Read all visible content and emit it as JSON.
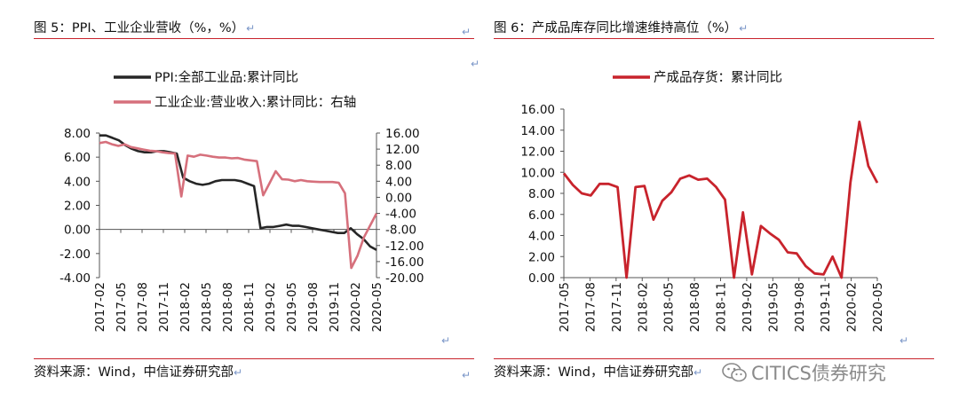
{
  "left_figure": {
    "title": "图 5：PPI、工业企业营收（%，%）",
    "source": "资料来源：Wind，中信证券研究部"
  },
  "right_figure": {
    "title": "图 6：产成品库存同比增速维持高位（%）",
    "source": "资料来源：Wind，中信证券研究部"
  },
  "watermark": "CITICS债券研究",
  "icons": {
    "return_mark": "return-arrow-icon",
    "watermark_logo": "wechat-icon"
  },
  "colors": {
    "rule": "#c8232c",
    "ppi": "#262626",
    "revenue": "#d6707c",
    "inventory": "#c8232c"
  },
  "chart_data": [
    {
      "type": "line",
      "legend_position": "top-left",
      "grid": false,
      "left_axis": {
        "ylim": [
          -4,
          8
        ],
        "ticks": [
          "8.00",
          "6.00",
          "4.00",
          "2.00",
          "0.00",
          "-2.00",
          "-4.00"
        ]
      },
      "right_axis": {
        "ylim": [
          -20,
          16
        ],
        "ticks": [
          "16.00",
          "12.00",
          "8.00",
          "4.00",
          "0.00",
          "-4.00",
          "-8.00",
          "-12.00",
          "-16.00",
          "-20.00"
        ]
      },
      "x_tick_labels": [
        "2017-02",
        "2017-05",
        "2017-08",
        "2017-11",
        "2018-02",
        "2018-05",
        "2018-08",
        "2018-11",
        "2019-02",
        "2019-05",
        "2019-08",
        "2019-11",
        "2020-02",
        "2020-05"
      ],
      "series": [
        {
          "name": "PPI:全部工业品:累计同比",
          "axis": "left",
          "values": [
            7.8,
            7.8,
            7.6,
            7.4,
            7.0,
            6.7,
            6.5,
            6.4,
            6.4,
            6.5,
            6.5,
            6.4,
            6.3,
            4.3,
            4.0,
            3.8,
            3.7,
            3.8,
            4.0,
            4.1,
            4.1,
            4.1,
            4.0,
            3.8,
            3.6,
            0.1,
            0.2,
            0.2,
            0.3,
            0.4,
            0.3,
            0.3,
            0.2,
            0.1,
            0.0,
            -0.1,
            -0.2,
            -0.3,
            -0.3,
            0.1,
            -0.4,
            -0.8,
            -1.4,
            -1.7
          ]
        },
        {
          "name": "工业企业:营业收入:累计同比：右轴",
          "axis": "right",
          "values": [
            13.5,
            13.8,
            13.2,
            12.8,
            13.2,
            12.5,
            12.2,
            11.9,
            11.6,
            11.5,
            11.2,
            11.0,
            10.9,
            0.2,
            10.4,
            10.1,
            10.6,
            10.4,
            10.1,
            9.9,
            9.9,
            9.7,
            9.8,
            9.4,
            9.2,
            9.0,
            0.5,
            3.5,
            6.5,
            4.5,
            4.4,
            4.0,
            4.3,
            4.0,
            3.9,
            3.8,
            3.8,
            3.8,
            3.6,
            1.0,
            -17.6,
            -14.5,
            -10.0,
            -7.0,
            -4.0
          ]
        }
      ]
    },
    {
      "type": "line",
      "legend_position": "top",
      "grid": false,
      "ylim": [
        0,
        16
      ],
      "y_tick_labels": [
        "16.00",
        "14.00",
        "12.00",
        "10.00",
        "8.00",
        "6.00",
        "4.00",
        "2.00",
        "0.00"
      ],
      "x_tick_labels": [
        "2017-05",
        "2017-08",
        "2017-11",
        "2018-02",
        "2018-05",
        "2018-08",
        "2018-11",
        "2019-02",
        "2019-05",
        "2019-08",
        "2019-11",
        "2020-02",
        "2020-05"
      ],
      "series": [
        {
          "name": "产成品存货：累计同比",
          "values": [
            9.9,
            8.8,
            8.0,
            7.8,
            8.9,
            8.9,
            8.6,
            0.0,
            8.6,
            8.7,
            5.5,
            7.3,
            8.1,
            9.4,
            9.7,
            9.3,
            9.4,
            8.6,
            7.4,
            0.0,
            6.2,
            0.3,
            4.9,
            4.2,
            3.6,
            2.4,
            2.3,
            1.1,
            0.4,
            0.3,
            2.0,
            0.0,
            9.0,
            14.8,
            10.6,
            9.0
          ]
        }
      ]
    }
  ]
}
